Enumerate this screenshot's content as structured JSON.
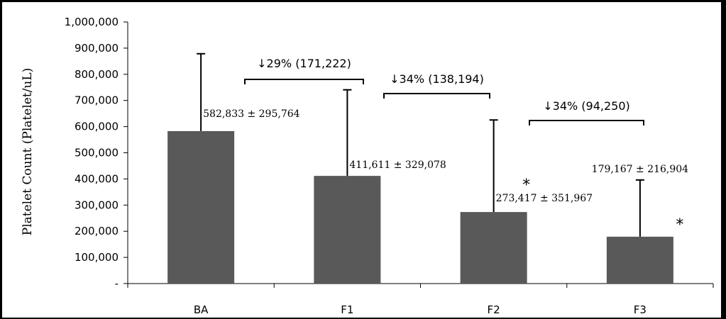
{
  "chart_data": {
    "type": "bar",
    "categories": [
      "BA",
      "F1",
      "F2",
      "F3"
    ],
    "values": [
      582833,
      411611,
      273417,
      179167
    ],
    "errors": [
      295764,
      329078,
      351967,
      216904
    ],
    "ylabel": "Platelet Count (Platelet/uL)",
    "xlabel": "",
    "ylim": [
      0,
      1000000
    ],
    "yticks": [
      0,
      100000,
      200000,
      300000,
      400000,
      500000,
      600000,
      700000,
      800000,
      900000,
      1000000
    ],
    "ytick_labels": [
      "-",
      "100,000",
      "200,000",
      "300,000",
      "400,000",
      "500,000",
      "600,000",
      "700,000",
      "800,000",
      "900,000",
      "1,000,000"
    ],
    "grid": false,
    "bar_color": "#595959",
    "data_labels": [
      "582,833 ± 295,764",
      "411,611 ± 329,078",
      "273,417 ± 351,967",
      "179,167 ± 216,904"
    ],
    "significance": [
      "",
      "",
      "*",
      "*"
    ],
    "annotations": [
      {
        "from": 0,
        "to": 1,
        "text": "↓29% (171,222)"
      },
      {
        "from": 1,
        "to": 2,
        "text": "↓34% (138,194)"
      },
      {
        "from": 2,
        "to": 3,
        "text": "↓34% (94,250)"
      }
    ]
  }
}
